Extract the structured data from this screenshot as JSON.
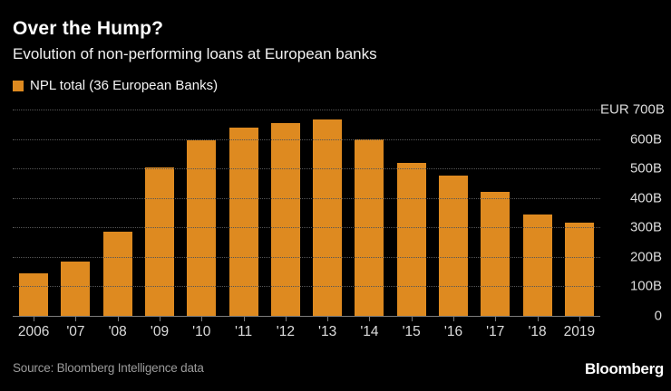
{
  "header": {
    "title": "Over the Hump?",
    "subtitle": "Evolution of non-performing loans at European banks"
  },
  "legend": {
    "label": "NPL total (36 European Banks)",
    "swatch_color": "#de8a20"
  },
  "chart_data": {
    "type": "bar",
    "title": "Over the Hump?",
    "subtitle": "Evolution of non-performing loans at European banks",
    "series_name": "NPL total (36 European Banks)",
    "categories": [
      "2006",
      "'07",
      "'08",
      "'09",
      "'10",
      "'11",
      "'12",
      "'13",
      "'14",
      "'15",
      "'16",
      "'17",
      "'18",
      "2019"
    ],
    "values": [
      145,
      185,
      285,
      505,
      595,
      640,
      655,
      665,
      600,
      520,
      475,
      420,
      345,
      315
    ],
    "unit": "EUR billions",
    "ylim": [
      0,
      700
    ],
    "ytick_step": 100,
    "ytick_labels": [
      "EUR 700B",
      "600B",
      "500B",
      "400B",
      "300B",
      "200B",
      "100B",
      "0"
    ],
    "yaxis_side": "right",
    "grid": "horizontal-dotted",
    "legend_position": "top-left",
    "bar_color": "#de8a20"
  },
  "footer": {
    "source": "Source: Bloomberg Intelligence data",
    "brand": "Bloomberg"
  },
  "colors": {
    "background": "#000000",
    "bar": "#de8a20",
    "grid": "#565656",
    "axis": "#7d7d7d",
    "title_text": "#ffffff",
    "tick_text": "#dcdcdc",
    "source_text": "#9b9b9b"
  }
}
